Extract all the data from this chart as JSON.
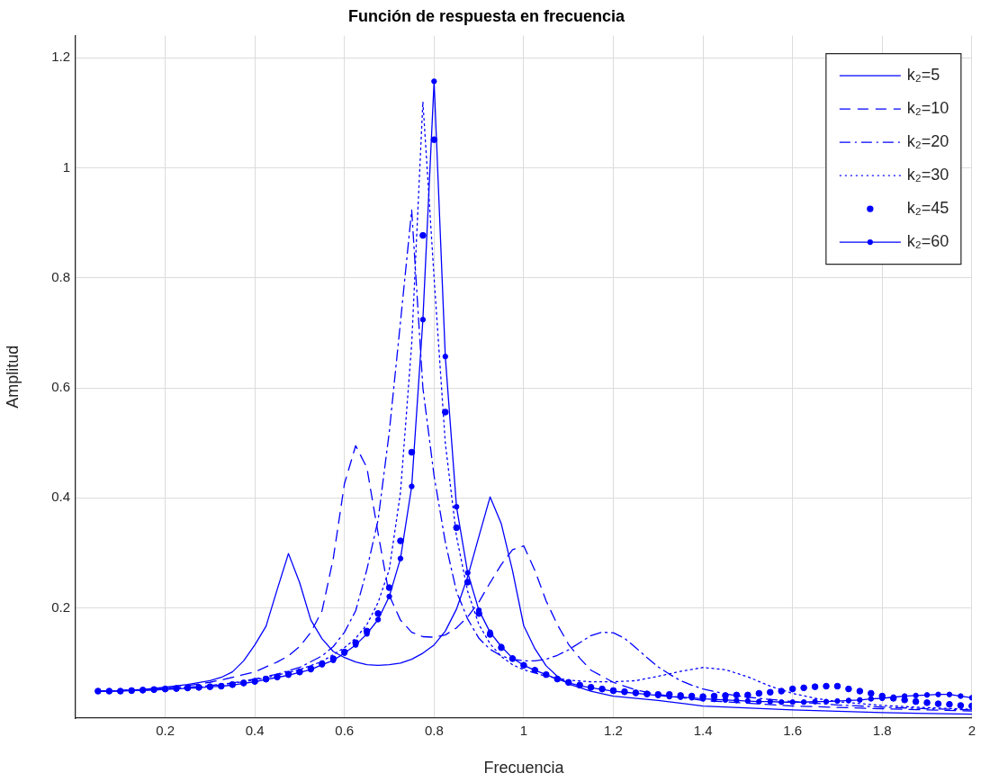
{
  "chart_data": {
    "type": "line",
    "title": "Función de respuesta en frecuencia",
    "xlabel": "Frecuencia",
    "ylabel": "Amplitud",
    "xlim": [
      0,
      2
    ],
    "ylim": [
      0,
      1.24
    ],
    "xticks": [
      0.2,
      0.4,
      0.6,
      0.8,
      1,
      1.2,
      1.4,
      1.6,
      1.8,
      2
    ],
    "yticks": [
      0.2,
      0.4,
      0.6,
      0.8,
      1,
      1.2
    ],
    "grid": true,
    "legend": "top right",
    "x": [
      0.05,
      0.075,
      0.1,
      0.125,
      0.15,
      0.175,
      0.2,
      0.225,
      0.25,
      0.275,
      0.3,
      0.325,
      0.35,
      0.375,
      0.4,
      0.425,
      0.45,
      0.475,
      0.5,
      0.525,
      0.55,
      0.575,
      0.6,
      0.625,
      0.65,
      0.675,
      0.7,
      0.725,
      0.75,
      0.775,
      0.8,
      0.825,
      0.85,
      0.875,
      0.9,
      0.925,
      0.95,
      0.975,
      1,
      1.025,
      1.05,
      1.075,
      1.1,
      1.125,
      1.15,
      1.175,
      1.2,
      1.225,
      1.25,
      1.275,
      1.3,
      1.325,
      1.35,
      1.375,
      1.4,
      1.425,
      1.45,
      1.475,
      1.5,
      1.525,
      1.55,
      1.575,
      1.6,
      1.625,
      1.65,
      1.675,
      1.7,
      1.725,
      1.75,
      1.775,
      1.8,
      1.825,
      1.85,
      1.875,
      1.9,
      1.925,
      1.95,
      1.975,
      2
    ],
    "series": [
      {
        "name": "k₂=5",
        "color": "#0000ff",
        "line_style": "solid",
        "marker": "none",
        "x": [
          0.05,
          0.1,
          0.15,
          0.2,
          0.25,
          0.3,
          0.325,
          0.35,
          0.375,
          0.4,
          0.425,
          0.45,
          0.475,
          0.5,
          0.525,
          0.55,
          0.575,
          0.6,
          0.625,
          0.65,
          0.675,
          0.7,
          0.725,
          0.75,
          0.775,
          0.8,
          0.825,
          0.85,
          0.875,
          0.9,
          0.925,
          0.95,
          0.975,
          1,
          1.025,
          1.05,
          1.075,
          1.1,
          1.15,
          1.2,
          1.3,
          1.4,
          1.6,
          1.8,
          2
        ],
        "values": [
          0.049,
          0.05,
          0.052,
          0.056,
          0.061,
          0.068,
          0.074,
          0.084,
          0.104,
          0.133,
          0.167,
          0.234,
          0.299,
          0.246,
          0.178,
          0.144,
          0.121,
          0.11,
          0.102,
          0.097,
          0.096,
          0.097,
          0.1,
          0.107,
          0.118,
          0.133,
          0.158,
          0.198,
          0.257,
          0.33,
          0.402,
          0.353,
          0.268,
          0.168,
          0.126,
          0.095,
          0.076,
          0.062,
          0.049,
          0.04,
          0.032,
          0.022,
          0.015,
          0.01,
          0.007
        ]
      },
      {
        "name": "k₂=10",
        "color": "#0000ff",
        "line_style": "dashed",
        "marker": "none",
        "x": [
          0.05,
          0.1,
          0.15,
          0.2,
          0.25,
          0.3,
          0.35,
          0.4,
          0.45,
          0.475,
          0.5,
          0.525,
          0.55,
          0.575,
          0.6,
          0.625,
          0.65,
          0.675,
          0.7,
          0.725,
          0.75,
          0.775,
          0.8,
          0.825,
          0.85,
          0.875,
          0.9,
          0.925,
          0.95,
          0.975,
          1,
          1.025,
          1.05,
          1.075,
          1.1,
          1.125,
          1.15,
          1.2,
          1.25,
          1.3,
          1.4,
          1.6,
          1.8,
          2
        ],
        "values": [
          0.049,
          0.05,
          0.051,
          0.054,
          0.059,
          0.065,
          0.074,
          0.084,
          0.102,
          0.113,
          0.13,
          0.156,
          0.195,
          0.29,
          0.426,
          0.495,
          0.455,
          0.336,
          0.223,
          0.178,
          0.156,
          0.148,
          0.147,
          0.151,
          0.164,
          0.184,
          0.211,
          0.246,
          0.279,
          0.306,
          0.313,
          0.268,
          0.213,
          0.17,
          0.134,
          0.109,
          0.087,
          0.065,
          0.051,
          0.043,
          0.032,
          0.022,
          0.017,
          0.013
        ]
      },
      {
        "name": "k₂=20",
        "color": "#0000ff",
        "line_style": "dashdot",
        "marker": "none",
        "x": [
          0.05,
          0.1,
          0.2,
          0.25,
          0.3,
          0.35,
          0.4,
          0.45,
          0.5,
          0.55,
          0.575,
          0.6,
          0.625,
          0.65,
          0.675,
          0.7,
          0.725,
          0.75,
          0.775,
          0.8,
          0.825,
          0.85,
          0.875,
          0.9,
          0.925,
          0.95,
          0.975,
          1,
          1.025,
          1.05,
          1.075,
          1.1,
          1.125,
          1.15,
          1.175,
          1.2,
          1.225,
          1.25,
          1.275,
          1.3,
          1.325,
          1.35,
          1.375,
          1.4,
          1.45,
          1.5,
          1.6,
          1.7,
          1.8,
          1.9,
          2
        ],
        "values": [
          0.049,
          0.05,
          0.053,
          0.056,
          0.059,
          0.064,
          0.071,
          0.08,
          0.092,
          0.113,
          0.13,
          0.156,
          0.195,
          0.27,
          0.36,
          0.52,
          0.72,
          0.923,
          0.6,
          0.44,
          0.32,
          0.23,
          0.18,
          0.145,
          0.125,
          0.113,
          0.107,
          0.104,
          0.104,
          0.107,
          0.114,
          0.124,
          0.137,
          0.15,
          0.156,
          0.155,
          0.145,
          0.128,
          0.11,
          0.093,
          0.08,
          0.068,
          0.06,
          0.053,
          0.044,
          0.038,
          0.03,
          0.024,
          0.02,
          0.017,
          0.015
        ]
      },
      {
        "name": "k₂=30",
        "color": "#0000ff",
        "line_style": "dotted",
        "marker": "none",
        "x": [
          0.05,
          0.1,
          0.2,
          0.3,
          0.4,
          0.45,
          0.5,
          0.55,
          0.6,
          0.625,
          0.65,
          0.675,
          0.7,
          0.725,
          0.75,
          0.775,
          0.8,
          0.825,
          0.85,
          0.875,
          0.9,
          0.925,
          0.95,
          0.975,
          1,
          1.05,
          1.1,
          1.15,
          1.2,
          1.25,
          1.3,
          1.35,
          1.4,
          1.45,
          1.5,
          1.55,
          1.6,
          1.65,
          1.7,
          1.8,
          1.9,
          2
        ],
        "values": [
          0.049,
          0.05,
          0.053,
          0.058,
          0.069,
          0.078,
          0.088,
          0.103,
          0.128,
          0.145,
          0.17,
          0.21,
          0.27,
          0.41,
          0.68,
          1.12,
          0.8,
          0.5,
          0.33,
          0.23,
          0.17,
          0.135,
          0.112,
          0.097,
          0.088,
          0.076,
          0.069,
          0.066,
          0.066,
          0.068,
          0.076,
          0.085,
          0.092,
          0.088,
          0.075,
          0.058,
          0.045,
          0.036,
          0.03,
          0.023,
          0.019,
          0.016
        ]
      },
      {
        "name": "k₂=45",
        "color": "#0000ff",
        "type": "scatter",
        "marker": "circle",
        "values": [
          0.049,
          0.049,
          0.049,
          0.05,
          0.051,
          0.052,
          0.053,
          0.054,
          0.055,
          0.056,
          0.057,
          0.058,
          0.061,
          0.064,
          0.067,
          0.071,
          0.075,
          0.08,
          0.084,
          0.09,
          0.099,
          0.108,
          0.12,
          0.137,
          0.158,
          0.19,
          0.237,
          0.322,
          0.483,
          0.877,
          1.051,
          0.556,
          0.346,
          0.247,
          0.19,
          0.152,
          0.128,
          0.108,
          0.096,
          0.087,
          0.079,
          0.071,
          0.065,
          0.06,
          0.056,
          0.053,
          0.05,
          0.048,
          0.046,
          0.044,
          0.043,
          0.043,
          0.041,
          0.04,
          0.039,
          0.04,
          0.041,
          0.042,
          0.042,
          0.045,
          0.047,
          0.049,
          0.053,
          0.055,
          0.057,
          0.058,
          0.058,
          0.053,
          0.049,
          0.045,
          0.04,
          0.036,
          0.033,
          0.03,
          0.028,
          0.026,
          0.025,
          0.023,
          0.022
        ]
      },
      {
        "name": "k₂=60",
        "color": "#0000ff",
        "line_style": "solid",
        "marker": "circle",
        "values": [
          0.049,
          0.049,
          0.049,
          0.05,
          0.05,
          0.051,
          0.052,
          0.053,
          0.054,
          0.055,
          0.057,
          0.058,
          0.06,
          0.063,
          0.066,
          0.07,
          0.074,
          0.078,
          0.083,
          0.088,
          0.097,
          0.105,
          0.118,
          0.133,
          0.153,
          0.179,
          0.221,
          0.29,
          0.421,
          0.724,
          1.157,
          0.657,
          0.384,
          0.264,
          0.196,
          0.156,
          0.13,
          0.109,
          0.096,
          0.087,
          0.079,
          0.071,
          0.064,
          0.059,
          0.055,
          0.052,
          0.049,
          0.047,
          0.045,
          0.043,
          0.041,
          0.039,
          0.038,
          0.037,
          0.035,
          0.034,
          0.033,
          0.032,
          0.031,
          0.03,
          0.03,
          0.029,
          0.029,
          0.029,
          0.03,
          0.03,
          0.031,
          0.032,
          0.033,
          0.035,
          0.036,
          0.038,
          0.04,
          0.041,
          0.042,
          0.043,
          0.043,
          0.04,
          0.037
        ]
      }
    ]
  }
}
